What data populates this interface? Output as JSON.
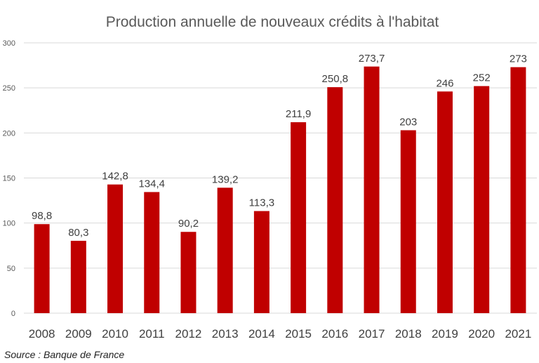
{
  "chart_data": {
    "type": "bar",
    "title": "Production annuelle de nouveaux crédits à l'habitat",
    "categories": [
      "2008",
      "2009",
      "2010",
      "2011",
      "2012",
      "2013",
      "2014",
      "2015",
      "2016",
      "2017",
      "2018",
      "2019",
      "2020",
      "2021"
    ],
    "values": [
      98.8,
      80.3,
      142.8,
      134.4,
      90.2,
      139.2,
      113.3,
      211.9,
      250.8,
      273.7,
      203,
      246,
      252,
      273
    ],
    "data_labels": [
      "98,8",
      "80,3",
      "142,8",
      "134,4",
      "90,2",
      "139,2",
      "113,3",
      "211,9",
      "250,8",
      "273,7",
      "203",
      "246",
      "252",
      "273"
    ],
    "yticks": [
      "0",
      "50",
      "100",
      "150",
      "200",
      "250",
      "300"
    ],
    "ylim": [
      0,
      300
    ],
    "xlabel": "",
    "ylabel": "",
    "grid": true,
    "bar_color": "#C00000",
    "source": "Source : Banque de France"
  }
}
